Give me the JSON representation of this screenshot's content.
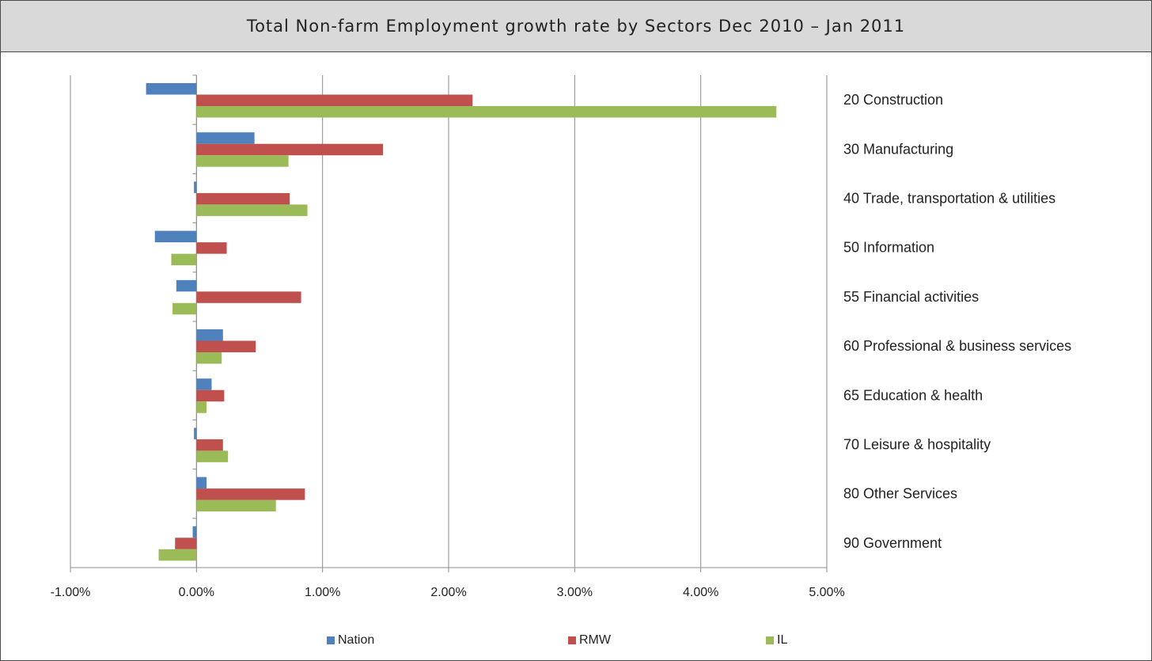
{
  "chart_data": {
    "type": "bar",
    "orientation": "horizontal",
    "title": "Total Non-farm Employment growth rate by Sectors Dec 2010 –  Jan 2011",
    "categories": [
      "20 Construction",
      "30 Manufacturing",
      "40 Trade, transportation & utilities",
      "50 Information",
      "55 Financial activities",
      "60 Professional & business services",
      "65 Education & health",
      "70 Leisure & hospitality",
      "80 Other Services",
      "90 Government"
    ],
    "series": [
      {
        "name": "Nation",
        "color": "#4f81bd",
        "values": [
          -0.4,
          0.46,
          -0.02,
          -0.33,
          -0.16,
          0.21,
          0.12,
          -0.02,
          0.08,
          -0.03
        ]
      },
      {
        "name": "RMW",
        "color": "#c0504d",
        "values": [
          2.19,
          1.48,
          0.74,
          0.24,
          0.83,
          0.47,
          0.22,
          0.21,
          0.86,
          -0.17
        ]
      },
      {
        "name": "IL",
        "color": "#9bbb59",
        "values": [
          4.6,
          0.73,
          0.88,
          -0.2,
          -0.19,
          0.2,
          0.08,
          0.25,
          0.63,
          -0.3
        ]
      }
    ],
    "x_ticks": [
      "-1.00%",
      "0.00%",
      "1.00%",
      "2.00%",
      "3.00%",
      "4.00%",
      "5.00%"
    ],
    "xlim": [
      -1.0,
      5.0
    ],
    "unit": "%",
    "grid": true,
    "legend_position": "bottom"
  }
}
